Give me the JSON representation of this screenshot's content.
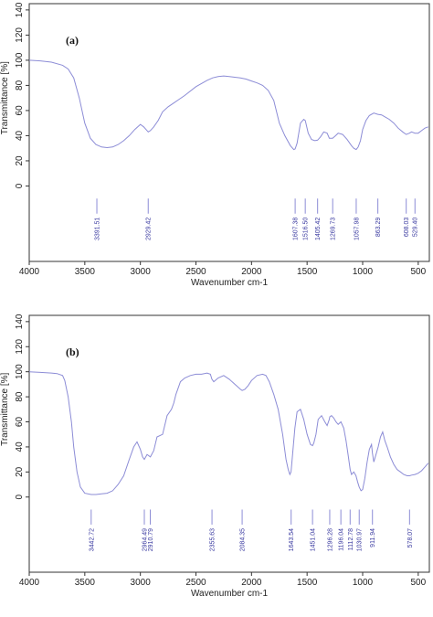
{
  "chart_data": [
    {
      "type": "line",
      "panel_label": "(a)",
      "xlabel": "Wavenumber cm-1",
      "ylabel": "Transmittance [%]",
      "xlim": [
        4000,
        400
      ],
      "ylim": [
        -60,
        145
      ],
      "x_reversed": true,
      "x_ticks": [
        4000,
        3500,
        3000,
        2500,
        2000,
        1500,
        1000,
        500
      ],
      "y_ticks": [
        0,
        20,
        40,
        60,
        80,
        100,
        120,
        140
      ],
      "line_color": "#8c8cd6",
      "label_color": "#3a3aa0",
      "series": [
        {
          "x": [
            4000,
            3900,
            3800,
            3700,
            3650,
            3600,
            3550,
            3500,
            3450,
            3400,
            3350,
            3300,
            3250,
            3200,
            3150,
            3100,
            3050,
            3000,
            2970,
            2940,
            2929,
            2910,
            2880,
            2840,
            2800,
            2750,
            2700,
            2650,
            2600,
            2500,
            2400,
            2350,
            2300,
            2250,
            2200,
            2150,
            2100,
            2050,
            2000,
            1950,
            1900,
            1850,
            1800,
            1750,
            1700,
            1650,
            1620,
            1607,
            1590,
            1560,
            1530,
            1516,
            1490,
            1460,
            1430,
            1405,
            1380,
            1350,
            1320,
            1300,
            1270,
            1250,
            1220,
            1180,
            1140,
            1100,
            1080,
            1058,
            1040,
            1020,
            1000,
            970,
            940,
            900,
            863,
            830,
            800,
            760,
            720,
            680,
            640,
            608,
            580,
            560,
            529,
            500,
            470,
            440,
            410
          ],
          "y": [
            100,
            99.5,
            98.5,
            96,
            93,
            86,
            70,
            50,
            38,
            33,
            31,
            30.5,
            31,
            33,
            36,
            40,
            45,
            49,
            47,
            44,
            43,
            44,
            47,
            52,
            59,
            63,
            66,
            69,
            72,
            79,
            84,
            86,
            87,
            87.5,
            87,
            86.5,
            86,
            85,
            83.5,
            82,
            80,
            76,
            68,
            50,
            40,
            32,
            29,
            29.5,
            34,
            50,
            53,
            52,
            42,
            37,
            36,
            36.5,
            39,
            43,
            42,
            38,
            38,
            39.5,
            42,
            41,
            37,
            32,
            30,
            29,
            31,
            36,
            45,
            52,
            56,
            58,
            57,
            56.5,
            55,
            53,
            50,
            46,
            43,
            41,
            42,
            43,
            42,
            42,
            44,
            46,
            47
          ]
        }
      ],
      "peaks": [
        "3391.51",
        "2929.42",
        "1607.38",
        "1516.50",
        "1405.42",
        "1269.73",
        "1057.98",
        "863.29",
        "608.03",
        "529.40"
      ],
      "peak_positions": [
        3391.51,
        2929.42,
        1607.38,
        1516.5,
        1405.42,
        1269.73,
        1057.98,
        863.29,
        608.03,
        529.4
      ]
    },
    {
      "type": "line",
      "panel_label": "(b)",
      "xlabel": "Wavenumber cm-1",
      "ylabel": "Transmittance [%]",
      "xlim": [
        4000,
        400
      ],
      "ylim": [
        -60,
        145
      ],
      "x_reversed": true,
      "x_ticks": [
        4000,
        3500,
        3000,
        2500,
        2000,
        1500,
        1000,
        500
      ],
      "y_ticks": [
        0,
        20,
        40,
        60,
        80,
        100,
        120,
        140
      ],
      "line_color": "#8c8cd6",
      "label_color": "#3a3aa0",
      "series": [
        {
          "x": [
            4000,
            3900,
            3800,
            3750,
            3700,
            3680,
            3650,
            3620,
            3600,
            3570,
            3540,
            3500,
            3442,
            3400,
            3350,
            3300,
            3250,
            3200,
            3150,
            3100,
            3060,
            3030,
            3000,
            2980,
            2964,
            2940,
            2910,
            2880,
            2850,
            2800,
            2760,
            2720,
            2700,
            2680,
            2640,
            2600,
            2550,
            2500,
            2450,
            2400,
            2370,
            2356,
            2340,
            2300,
            2250,
            2200,
            2150,
            2100,
            2084,
            2060,
            2030,
            2000,
            1950,
            1900,
            1870,
            1840,
            1800,
            1760,
            1720,
            1690,
            1670,
            1655,
            1644,
            1630,
            1610,
            1590,
            1560,
            1530,
            1500,
            1470,
            1451,
            1440,
            1420,
            1400,
            1370,
            1340,
            1320,
            1300,
            1296,
            1280,
            1260,
            1240,
            1220,
            1196,
            1170,
            1150,
            1130,
            1113,
            1100,
            1080,
            1060,
            1045,
            1031,
            1015,
            1000,
            980,
            960,
            940,
            920,
            912,
            900,
            880,
            860,
            840,
            820,
            800,
            780,
            750,
            720,
            690,
            660,
            630,
            600,
            578,
            560,
            530,
            500,
            470,
            440,
            410
          ],
          "y": [
            100,
            99.5,
            99,
            98.5,
            97,
            93,
            80,
            60,
            40,
            20,
            8,
            3,
            2,
            2,
            2.5,
            3,
            5,
            10,
            17,
            30,
            40,
            44,
            38,
            32,
            30,
            34,
            32,
            37,
            48,
            50,
            65,
            70,
            75,
            82,
            92,
            95,
            97,
            98,
            98,
            99,
            98,
            94,
            92,
            95,
            97,
            94,
            90,
            86,
            85,
            86,
            89,
            93,
            97,
            98,
            97,
            92,
            82,
            70,
            50,
            30,
            22,
            18,
            20,
            35,
            55,
            68,
            70,
            62,
            50,
            42,
            41,
            43,
            50,
            62,
            65,
            60,
            57,
            62,
            64,
            65,
            63,
            60,
            58,
            60,
            55,
            45,
            33,
            22,
            18,
            20,
            17,
            12,
            8,
            5,
            6,
            15,
            28,
            38,
            42,
            35,
            28,
            34,
            40,
            48,
            52,
            45,
            40,
            32,
            26,
            22,
            20,
            18,
            17,
            17,
            17.5,
            18,
            19,
            21,
            24,
            27
          ]
        }
      ],
      "peaks": [
        "3442.72",
        "2964.49",
        "2910.79",
        "2355.63",
        "2084.35",
        "1643.54",
        "1451.04",
        "1296.28",
        "1196.04",
        "1112.78",
        "1030.97",
        "911.94",
        "578.07"
      ],
      "peak_positions": [
        3442.72,
        2964.49,
        2910.79,
        2355.63,
        2084.35,
        1643.54,
        1451.04,
        1296.28,
        1196.04,
        1112.78,
        1030.97,
        911.94,
        578.07
      ]
    }
  ]
}
